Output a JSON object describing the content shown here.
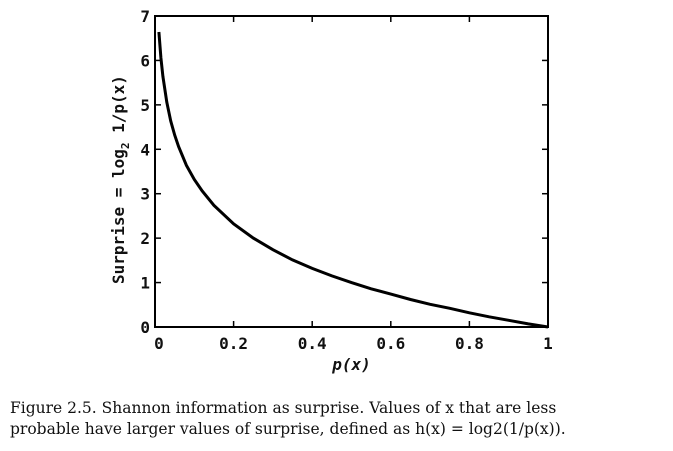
{
  "chart_data": {
    "type": "line",
    "title": "",
    "xlabel": "p(x)",
    "ylabel": "Surprise = log2 1/p(x)",
    "ylabel_parts": {
      "prefix": "Surprise = log",
      "subscript": "2",
      "suffix": " 1/p(x)"
    },
    "xlim": [
      0,
      1
    ],
    "ylim": [
      0,
      7
    ],
    "x_ticks": [
      0,
      0.2,
      0.4,
      0.6,
      0.8,
      1
    ],
    "x_tick_labels": [
      "0",
      "0.2",
      "0.4",
      "0.6",
      "0.8",
      "1"
    ],
    "y_ticks": [
      0,
      1,
      2,
      3,
      4,
      5,
      6,
      7
    ],
    "y_tick_labels": [
      "0",
      "1",
      "2",
      "3",
      "4",
      "5",
      "6",
      "7"
    ],
    "grid": false,
    "series": [
      {
        "color": "#000000",
        "x": [
          0.01,
          0.015,
          0.02,
          0.03,
          0.04,
          0.05,
          0.06,
          0.08,
          0.1,
          0.12,
          0.15,
          0.2,
          0.25,
          0.3,
          0.35,
          0.4,
          0.45,
          0.5,
          0.55,
          0.6,
          0.65,
          0.7,
          0.75,
          0.8,
          0.85,
          0.9,
          0.95,
          1.0
        ],
        "y": [
          6.64,
          6.06,
          5.64,
          5.06,
          4.64,
          4.32,
          4.06,
          3.64,
          3.32,
          3.06,
          2.74,
          2.32,
          2.0,
          1.74,
          1.51,
          1.32,
          1.15,
          1.0,
          0.86,
          0.74,
          0.62,
          0.51,
          0.42,
          0.32,
          0.23,
          0.15,
          0.07,
          0.0
        ]
      }
    ]
  },
  "caption": {
    "line1": "Figure 2.5.  Shannon information as surprise.  Values of x that are less",
    "line2": "probable have larger values of surprise, defined as h(x) = log2(1/p(x))."
  }
}
